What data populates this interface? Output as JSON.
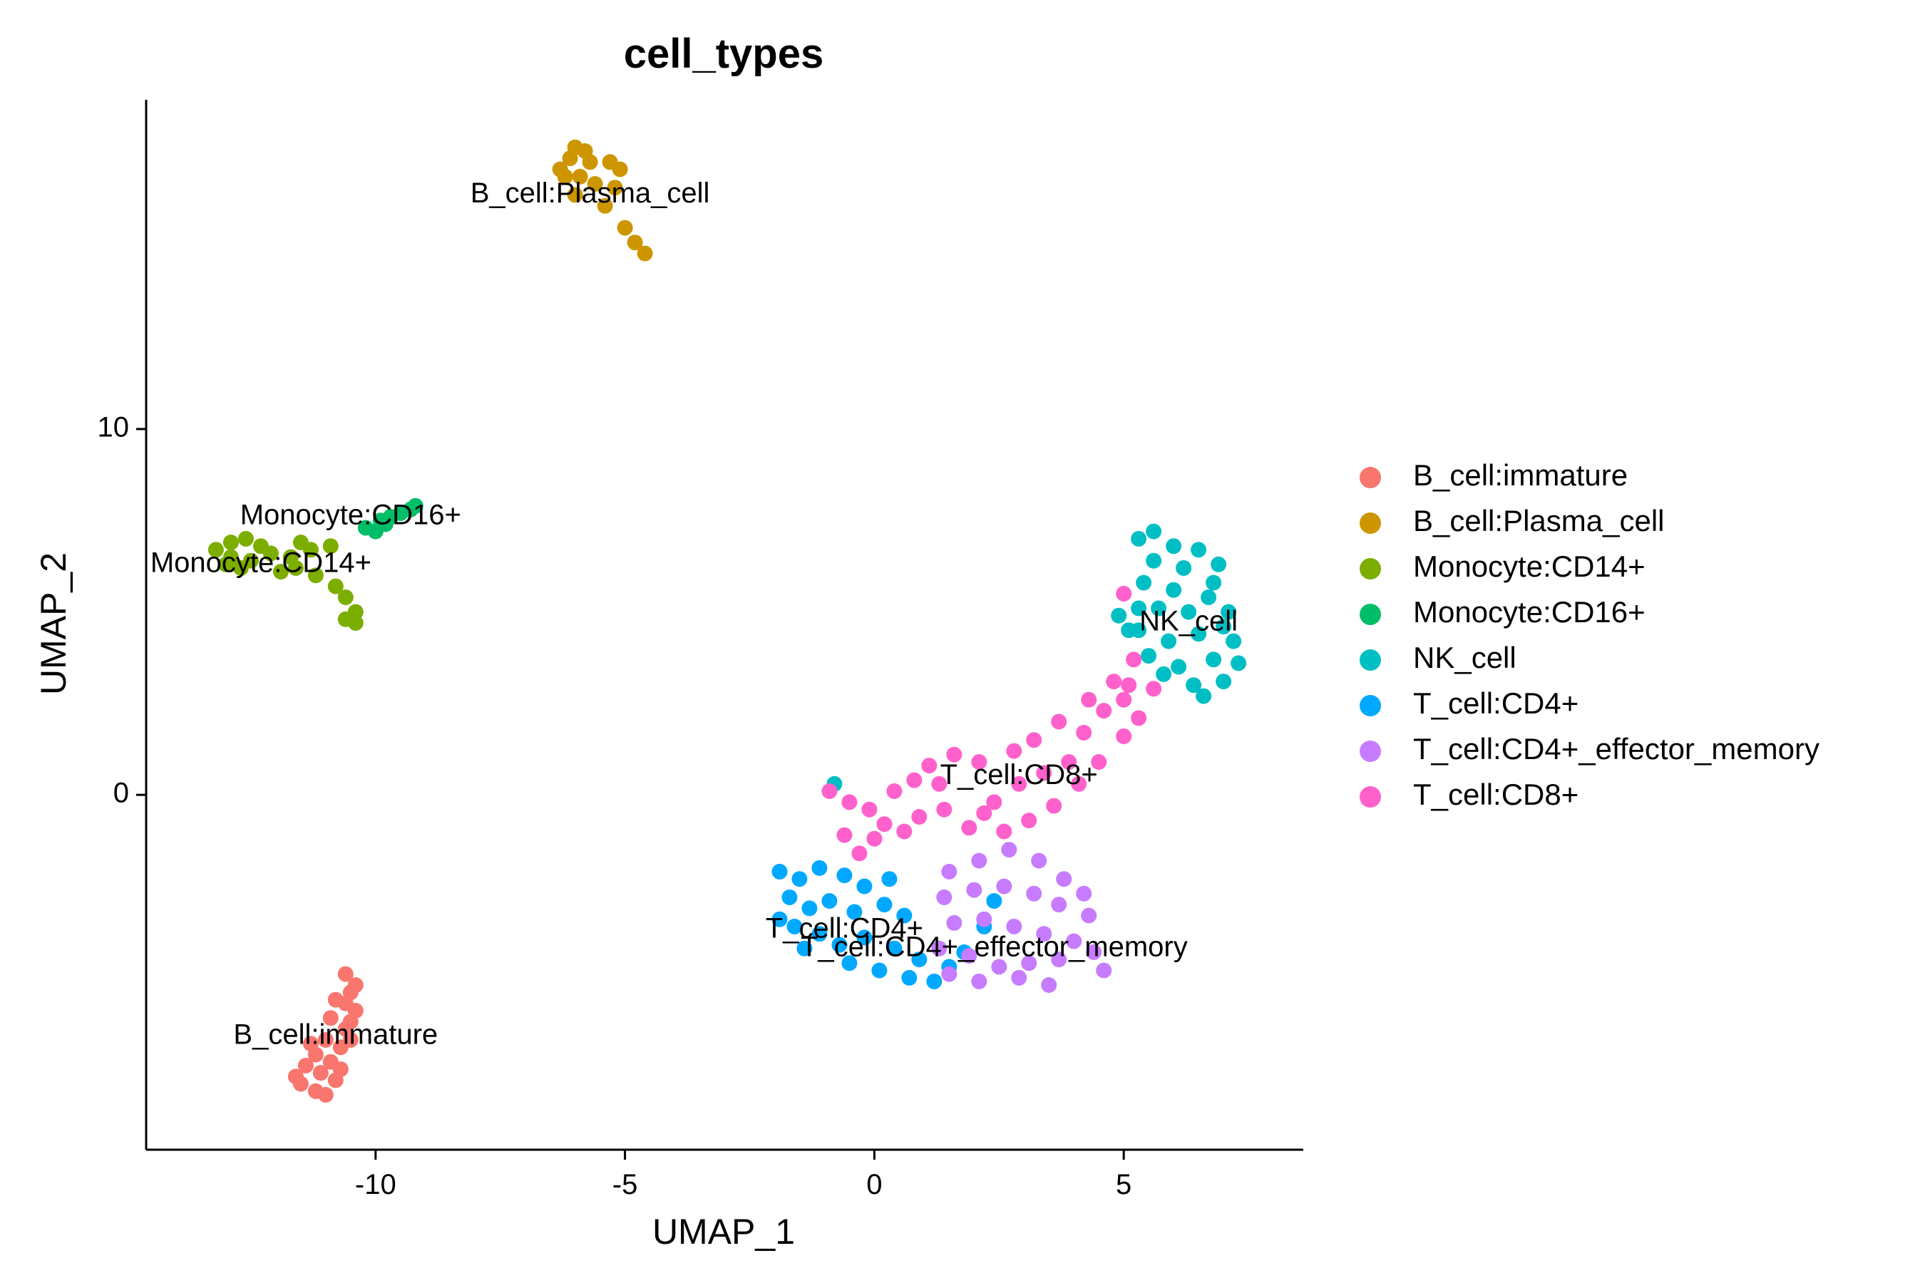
{
  "chart_data": {
    "type": "scatter",
    "title": "cell_types",
    "xlabel": "UMAP_1",
    "ylabel": "UMAP_2",
    "xlim": [
      -14.6,
      8.6
    ],
    "ylim": [
      -9.7,
      19.0
    ],
    "xticks": [
      {
        "value": -10,
        "label": "-10"
      },
      {
        "value": -5,
        "label": "-5"
      },
      {
        "value": 0,
        "label": "0"
      },
      {
        "value": 5,
        "label": "5"
      }
    ],
    "yticks": [
      {
        "value": 0,
        "label": "0"
      },
      {
        "value": 10,
        "label": "10"
      }
    ],
    "grid": false,
    "legend_position": "right",
    "series": [
      {
        "name": "B_cell:immature",
        "color": "#F8766D",
        "label_at": [
          -10.8,
          -6.6
        ],
        "points": [
          [
            -10.6,
            -4.9
          ],
          [
            -10.5,
            -5.4
          ],
          [
            -10.8,
            -5.6
          ],
          [
            -10.4,
            -5.9
          ],
          [
            -10.9,
            -6.1
          ],
          [
            -10.6,
            -6.4
          ],
          [
            -11.0,
            -6.7
          ],
          [
            -10.7,
            -6.9
          ],
          [
            -11.2,
            -7.1
          ],
          [
            -10.9,
            -7.3
          ],
          [
            -11.4,
            -7.4
          ],
          [
            -11.1,
            -7.6
          ],
          [
            -11.5,
            -7.9
          ],
          [
            -11.2,
            -8.1
          ],
          [
            -10.8,
            -7.8
          ],
          [
            -10.5,
            -6.2
          ],
          [
            -10.4,
            -5.2
          ],
          [
            -11.6,
            -7.7
          ],
          [
            -11.0,
            -8.2
          ],
          [
            -10.7,
            -7.5
          ],
          [
            -10.5,
            -6.7
          ],
          [
            -11.3,
            -6.8
          ],
          [
            -10.6,
            -5.7
          ]
        ]
      },
      {
        "name": "B_cell:Plasma_cell",
        "color": "#CD9600",
        "label_at": [
          -5.7,
          16.4
        ],
        "points": [
          [
            -6.1,
            17.4
          ],
          [
            -6.3,
            17.1
          ],
          [
            -6.0,
            17.7
          ],
          [
            -5.8,
            17.6
          ],
          [
            -6.2,
            16.9
          ],
          [
            -5.7,
            17.3
          ],
          [
            -5.3,
            17.3
          ],
          [
            -5.1,
            17.1
          ],
          [
            -5.2,
            16.6
          ],
          [
            -5.6,
            16.7
          ],
          [
            -6.0,
            16.4
          ],
          [
            -5.4,
            16.1
          ],
          [
            -5.0,
            15.5
          ],
          [
            -4.8,
            15.1
          ],
          [
            -4.6,
            14.8
          ],
          [
            -5.9,
            16.9
          ]
        ]
      },
      {
        "name": "Monocyte:CD14+",
        "color": "#7CAE00",
        "label_at": [
          -12.3,
          6.3
        ],
        "points": [
          [
            -13.2,
            6.7
          ],
          [
            -12.9,
            6.9
          ],
          [
            -12.6,
            7.0
          ],
          [
            -12.3,
            6.8
          ],
          [
            -12.9,
            6.5
          ],
          [
            -12.5,
            6.4
          ],
          [
            -12.1,
            6.6
          ],
          [
            -11.7,
            6.5
          ],
          [
            -11.3,
            6.7
          ],
          [
            -10.9,
            6.8
          ],
          [
            -11.6,
            6.2
          ],
          [
            -11.2,
            6.0
          ],
          [
            -10.8,
            5.7
          ],
          [
            -10.6,
            5.4
          ],
          [
            -10.4,
            5.0
          ],
          [
            -10.6,
            4.8
          ],
          [
            -10.4,
            4.7
          ],
          [
            -13.0,
            6.3
          ],
          [
            -12.7,
            6.2
          ],
          [
            -11.9,
            6.1
          ],
          [
            -11.5,
            6.9
          ]
        ]
      },
      {
        "name": "Monocyte:CD16+",
        "color": "#00BE67",
        "label_at": [
          -10.5,
          7.6
        ],
        "points": [
          [
            -10.2,
            7.3
          ],
          [
            -9.9,
            7.5
          ],
          [
            -9.7,
            7.6
          ],
          [
            -9.5,
            7.7
          ],
          [
            -9.3,
            7.8
          ],
          [
            -9.2,
            7.9
          ],
          [
            -9.8,
            7.4
          ],
          [
            -10.0,
            7.2
          ]
        ]
      },
      {
        "name": "NK_cell",
        "color": "#00BFC4",
        "label_at": [
          6.3,
          4.7
        ],
        "points": [
          [
            5.3,
            7.0
          ],
          [
            5.6,
            7.2
          ],
          [
            6.0,
            6.8
          ],
          [
            6.5,
            6.7
          ],
          [
            6.9,
            6.3
          ],
          [
            5.6,
            6.4
          ],
          [
            6.2,
            6.2
          ],
          [
            6.8,
            5.8
          ],
          [
            5.4,
            5.8
          ],
          [
            6.0,
            5.6
          ],
          [
            6.7,
            5.4
          ],
          [
            7.1,
            5.0
          ],
          [
            5.7,
            5.1
          ],
          [
            6.3,
            5.0
          ],
          [
            7.0,
            4.6
          ],
          [
            5.3,
            4.5
          ],
          [
            5.9,
            4.2
          ],
          [
            6.5,
            4.4
          ],
          [
            7.2,
            4.2
          ],
          [
            5.5,
            3.8
          ],
          [
            6.1,
            3.5
          ],
          [
            6.8,
            3.7
          ],
          [
            7.3,
            3.6
          ],
          [
            5.8,
            3.3
          ],
          [
            6.4,
            3.0
          ],
          [
            7.0,
            3.1
          ],
          [
            6.6,
            2.7
          ],
          [
            4.9,
            4.9
          ],
          [
            5.1,
            4.5
          ],
          [
            5.3,
            5.1
          ],
          [
            -0.8,
            0.3
          ]
        ]
      },
      {
        "name": "T_cell:CD4+",
        "color": "#00A9FF",
        "label_at": [
          -0.6,
          -3.7
        ],
        "points": [
          [
            -1.9,
            -2.1
          ],
          [
            -1.5,
            -2.3
          ],
          [
            -1.1,
            -2.0
          ],
          [
            -0.6,
            -2.2
          ],
          [
            -0.2,
            -2.5
          ],
          [
            0.3,
            -2.3
          ],
          [
            -1.7,
            -2.8
          ],
          [
            -1.3,
            -3.1
          ],
          [
            -0.9,
            -2.9
          ],
          [
            -0.4,
            -3.2
          ],
          [
            0.2,
            -3.0
          ],
          [
            0.6,
            -3.3
          ],
          [
            -1.6,
            -3.6
          ],
          [
            -1.1,
            -3.8
          ],
          [
            -0.7,
            -4.1
          ],
          [
            -0.2,
            -3.9
          ],
          [
            0.4,
            -4.2
          ],
          [
            0.9,
            -4.5
          ],
          [
            -1.4,
            -4.2
          ],
          [
            -0.5,
            -4.6
          ],
          [
            0.1,
            -4.8
          ],
          [
            0.7,
            -5.0
          ],
          [
            1.2,
            -5.1
          ],
          [
            1.5,
            -4.7
          ],
          [
            1.8,
            -4.3
          ],
          [
            -1.9,
            -3.4
          ],
          [
            2.2,
            -3.6
          ],
          [
            2.4,
            -2.9
          ]
        ]
      },
      {
        "name": "T_cell:CD4+_effector_memory",
        "color": "#C77CFF",
        "label_at": [
          2.4,
          -4.2
        ],
        "points": [
          [
            1.5,
            -2.1
          ],
          [
            2.1,
            -1.8
          ],
          [
            2.7,
            -1.5
          ],
          [
            3.3,
            -1.8
          ],
          [
            3.8,
            -2.3
          ],
          [
            4.2,
            -2.7
          ],
          [
            1.4,
            -2.8
          ],
          [
            2.0,
            -2.6
          ],
          [
            2.6,
            -2.5
          ],
          [
            3.2,
            -2.7
          ],
          [
            3.7,
            -3.0
          ],
          [
            4.3,
            -3.3
          ],
          [
            1.6,
            -3.5
          ],
          [
            2.2,
            -3.4
          ],
          [
            2.8,
            -3.6
          ],
          [
            3.4,
            -3.8
          ],
          [
            4.0,
            -4.0
          ],
          [
            4.4,
            -4.3
          ],
          [
            1.3,
            -4.2
          ],
          [
            1.9,
            -4.4
          ],
          [
            2.5,
            -4.7
          ],
          [
            3.1,
            -4.6
          ],
          [
            3.7,
            -4.5
          ],
          [
            4.6,
            -4.8
          ],
          [
            2.1,
            -5.1
          ],
          [
            2.9,
            -5.0
          ],
          [
            3.5,
            -5.2
          ],
          [
            1.5,
            -4.9
          ]
        ]
      },
      {
        "name": "T_cell:CD8+",
        "color": "#FF61CC",
        "label_at": [
          2.9,
          0.5
        ],
        "points": [
          [
            -0.9,
            0.1
          ],
          [
            -0.5,
            -0.2
          ],
          [
            -0.1,
            -0.4
          ],
          [
            0.4,
            0.1
          ],
          [
            0.9,
            -0.6
          ],
          [
            -0.6,
            -1.1
          ],
          [
            0.0,
            -1.2
          ],
          [
            0.6,
            -1.0
          ],
          [
            1.1,
            0.8
          ],
          [
            1.6,
            1.1
          ],
          [
            2.1,
            0.9
          ],
          [
            1.4,
            -0.4
          ],
          [
            1.9,
            -0.9
          ],
          [
            2.4,
            -0.2
          ],
          [
            2.9,
            0.3
          ],
          [
            3.4,
            0.6
          ],
          [
            3.9,
            0.9
          ],
          [
            2.6,
            -1.0
          ],
          [
            3.1,
            -0.7
          ],
          [
            3.6,
            -0.3
          ],
          [
            4.1,
            0.3
          ],
          [
            4.5,
            0.9
          ],
          [
            3.2,
            1.5
          ],
          [
            3.7,
            2.0
          ],
          [
            4.2,
            1.7
          ],
          [
            4.6,
            2.3
          ],
          [
            5.0,
            2.6
          ],
          [
            5.3,
            2.1
          ],
          [
            5.6,
            2.9
          ],
          [
            5.0,
            1.6
          ],
          [
            4.3,
            2.6
          ],
          [
            4.8,
            3.1
          ],
          [
            5.2,
            3.7
          ],
          [
            1.3,
            0.3
          ],
          [
            0.2,
            -0.8
          ],
          [
            2.2,
            -0.5
          ],
          [
            0.8,
            0.4
          ],
          [
            2.8,
            1.2
          ],
          [
            5.0,
            5.5
          ],
          [
            5.1,
            3.0
          ],
          [
            -0.3,
            -1.6
          ]
        ]
      }
    ]
  }
}
